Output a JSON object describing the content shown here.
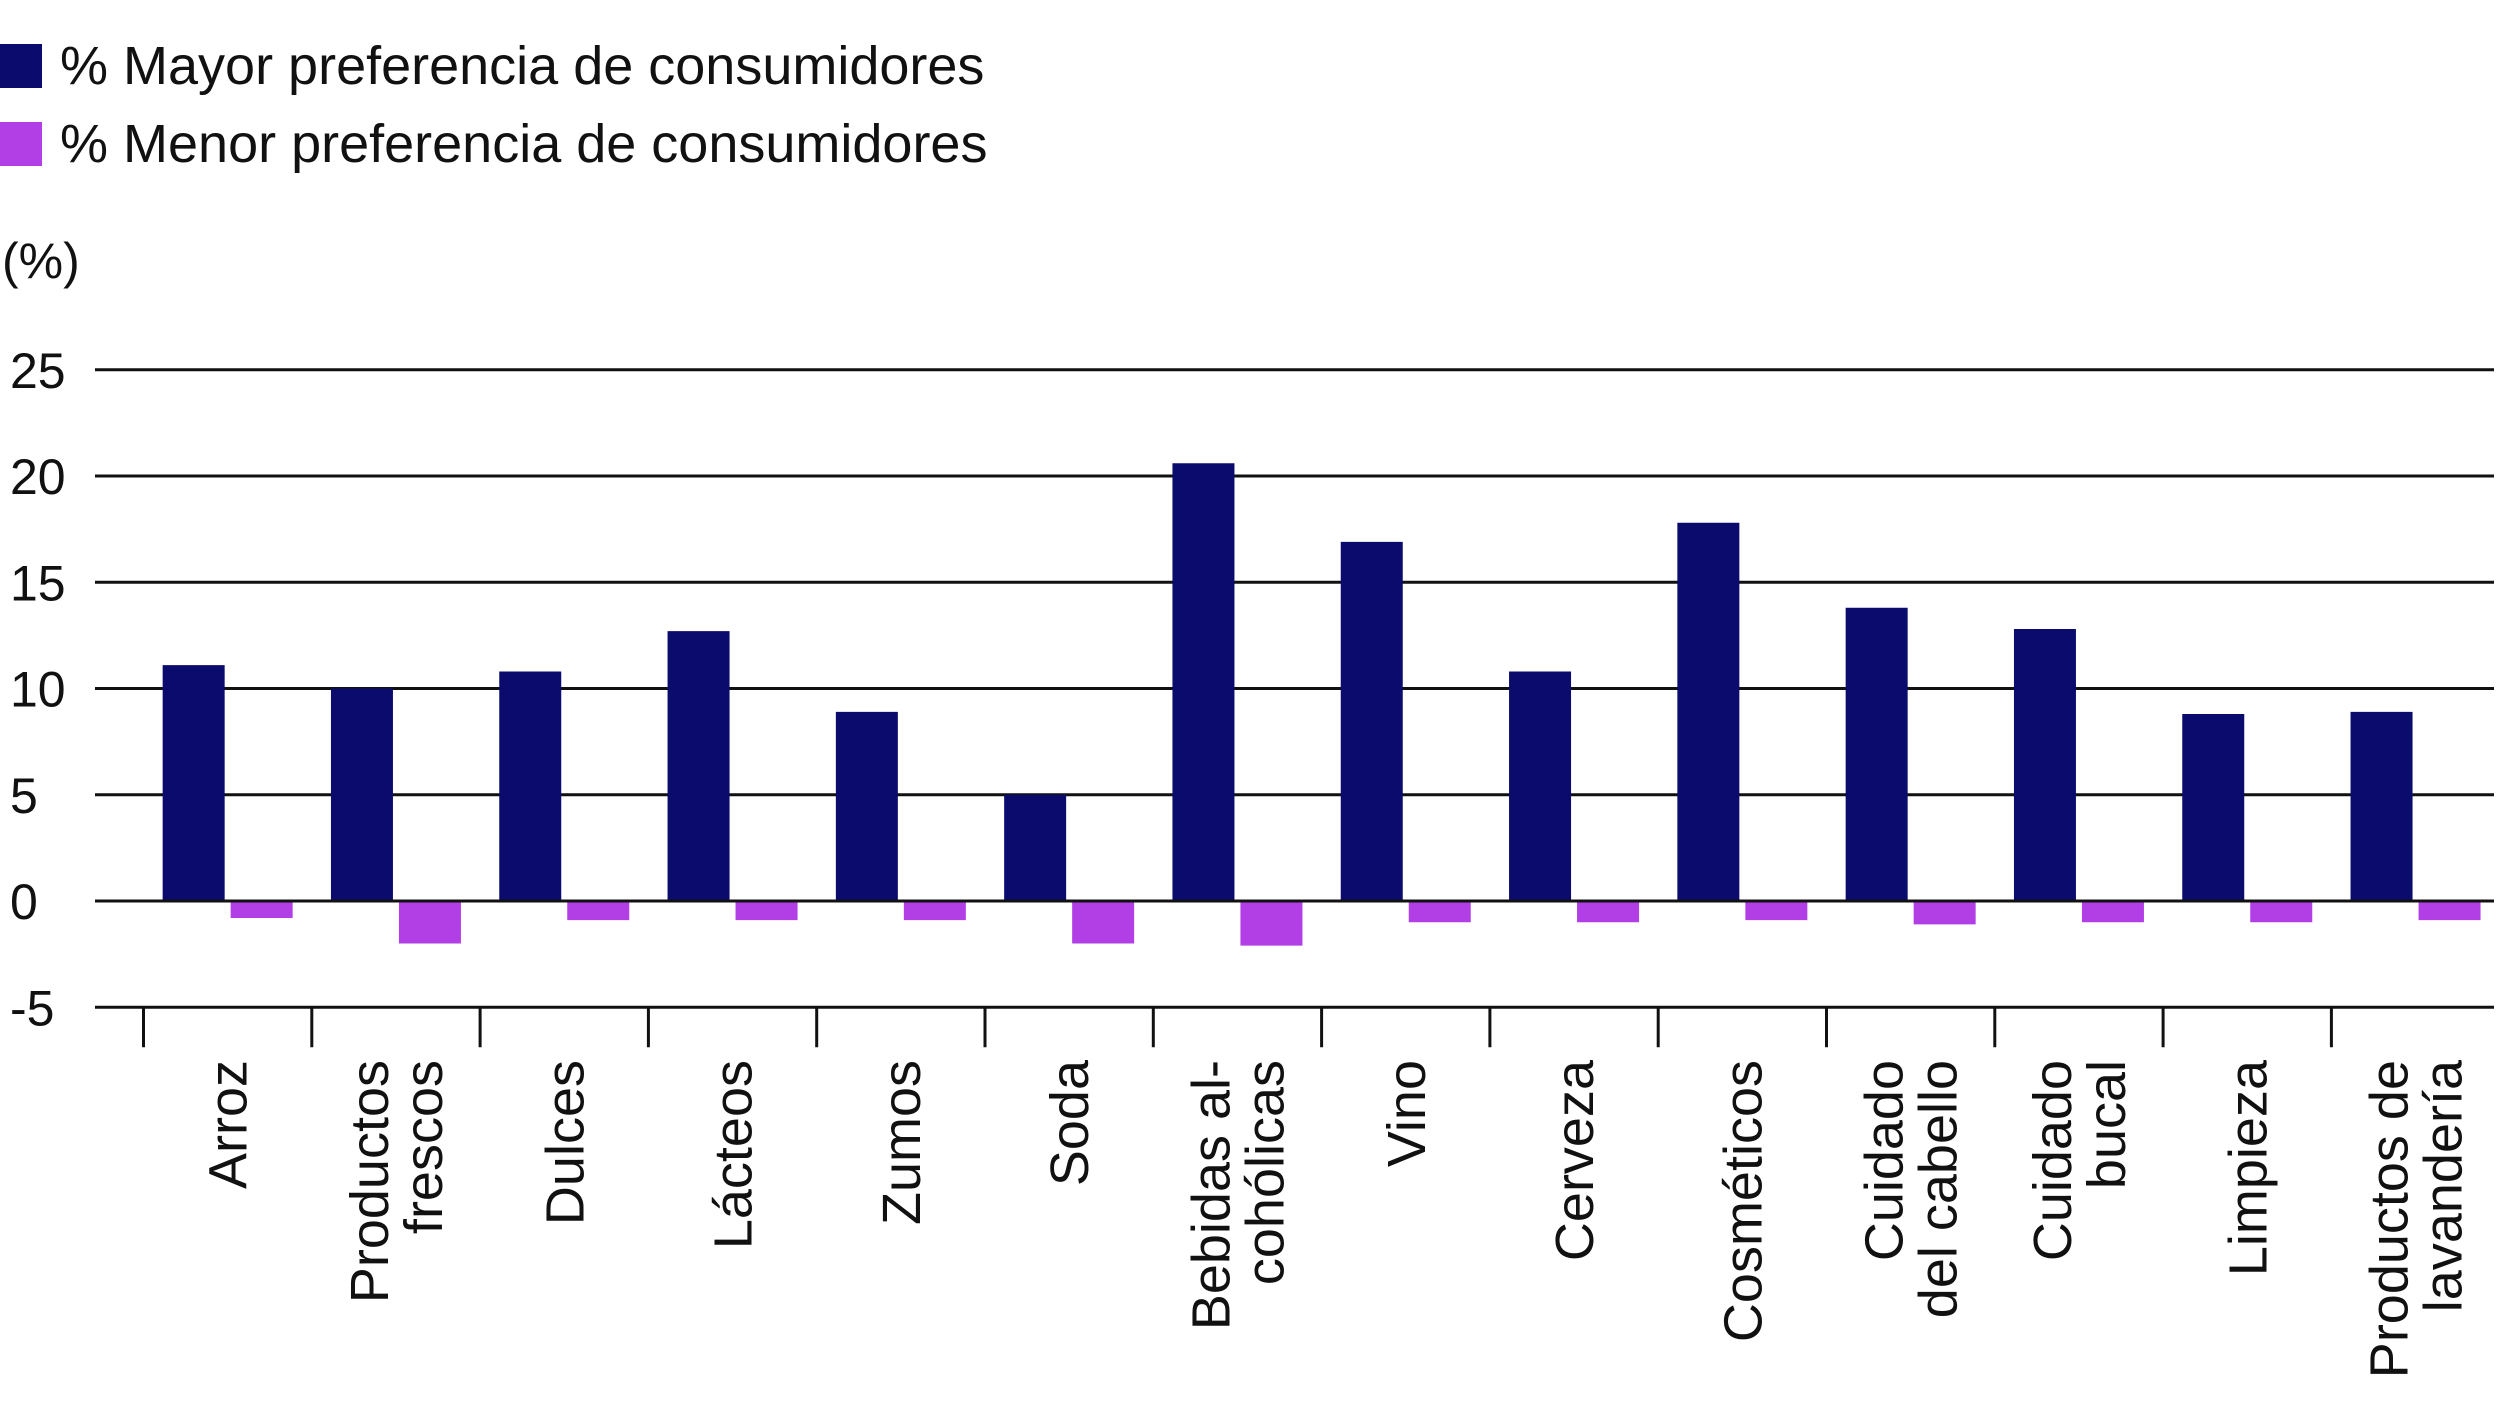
{
  "chart_data": {
    "type": "bar",
    "categories": [
      [
        "Arroz"
      ],
      [
        "Productos",
        "frescos"
      ],
      [
        "Dulces"
      ],
      [
        "Lácteos"
      ],
      [
        "Zumos"
      ],
      [
        "Soda"
      ],
      [
        "Bebidas al-",
        "cohólicas"
      ],
      [
        "Vino"
      ],
      [
        "Cerveza"
      ],
      [
        "Cosméticos"
      ],
      [
        "Cuidado",
        "del cabello"
      ],
      [
        "Cuidado",
        "bucal"
      ],
      [
        "Limpieza"
      ],
      [
        "Productos de",
        "lavandería"
      ]
    ],
    "series": [
      {
        "name": "% Mayor preferencia de consumidores",
        "color": "#0b0b6e",
        "values": [
          11.1,
          10.0,
          10.8,
          12.7,
          8.9,
          5.0,
          20.6,
          16.9,
          10.8,
          17.8,
          13.8,
          12.8,
          8.8,
          8.9
        ]
      },
      {
        "name": "% Menor preferencia de consumidores",
        "color": "#b23fe6",
        "values": [
          -0.8,
          -2.0,
          -0.9,
          -0.9,
          -0.9,
          -2.0,
          -2.1,
          -1.0,
          -1.0,
          -0.9,
          -1.1,
          -1.0,
          -1.0,
          -0.9
        ]
      }
    ],
    "unit_label": "(%)",
    "y_ticks": [
      25,
      20,
      15,
      10,
      5,
      0,
      -5
    ],
    "ylim": [
      -5,
      25
    ],
    "grid": true,
    "legend_position": "top-left"
  }
}
